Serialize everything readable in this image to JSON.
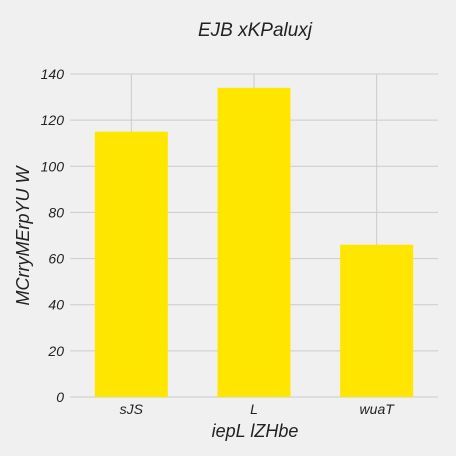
{
  "chart_data": {
    "type": "bar",
    "title": "EJB xKPaluxj",
    "xlabel": "iepL lZHbe",
    "ylabel": "MCrryMErpYU W",
    "categories": [
      "sJS",
      "L",
      "wuaT"
    ],
    "values": [
      115,
      134,
      66
    ],
    "ylim": [
      0,
      140
    ],
    "yticks": [
      0,
      20,
      40,
      60,
      80,
      100,
      120,
      140
    ],
    "grid": true,
    "legend": "none",
    "colors": {
      "bar": "#ffe600",
      "background": "#f0f0f0",
      "grid": "#cbcbcb",
      "text": "#222222"
    }
  }
}
